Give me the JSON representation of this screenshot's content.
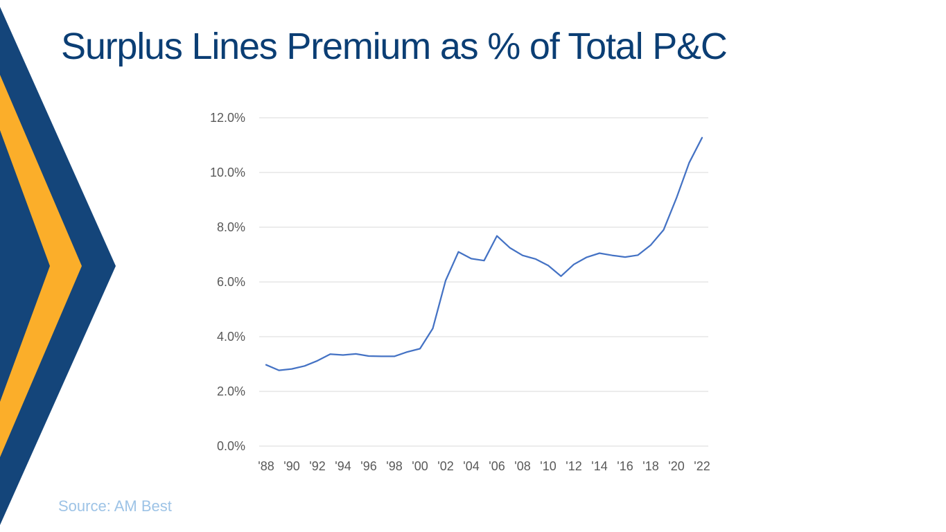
{
  "slide": {
    "title": "Surplus Lines Premium as % of Total P&C",
    "source": "Source: AM Best",
    "colors": {
      "title": "#0b3e74",
      "navy_chevron": "#14457a",
      "gold_chevron": "#fbae2a",
      "line": "#4472c4",
      "grid": "#d9d9d9",
      "source": "#9dc3e6"
    }
  },
  "chart_data": {
    "type": "line",
    "title": "",
    "xlabel": "",
    "ylabel": "",
    "x": [
      1988,
      1989,
      1990,
      1991,
      1992,
      1993,
      1994,
      1995,
      1996,
      1997,
      1998,
      1999,
      2000,
      2001,
      2002,
      2003,
      2004,
      2005,
      2006,
      2007,
      2008,
      2009,
      2010,
      2011,
      2012,
      2013,
      2014,
      2015,
      2016,
      2017,
      2018,
      2019,
      2020,
      2021,
      2022
    ],
    "x_tick_labels": [
      "'88",
      "'90",
      "'92",
      "'94",
      "'96",
      "'98",
      "'00",
      "'02",
      "'04",
      "'06",
      "'08",
      "'10",
      "'12",
      "'14",
      "'16",
      "'18",
      "'20",
      "'22"
    ],
    "y_tick_labels": [
      "0.0%",
      "2.0%",
      "4.0%",
      "6.0%",
      "8.0%",
      "10.0%",
      "12.0%"
    ],
    "ylim": [
      0,
      12
    ],
    "y_unit": "%",
    "grid": "horizontal",
    "legend": "none",
    "series": [
      {
        "values": [
          2.97,
          2.77,
          2.82,
          2.93,
          3.12,
          3.36,
          3.33,
          3.37,
          3.29,
          3.28,
          3.28,
          3.44,
          3.56,
          4.3,
          6.05,
          7.1,
          6.85,
          6.78,
          7.68,
          7.25,
          6.97,
          6.84,
          6.6,
          6.21,
          6.64,
          6.9,
          7.05,
          6.97,
          6.91,
          6.98,
          7.35,
          7.9,
          9.06,
          10.36,
          11.27
        ]
      }
    ]
  }
}
